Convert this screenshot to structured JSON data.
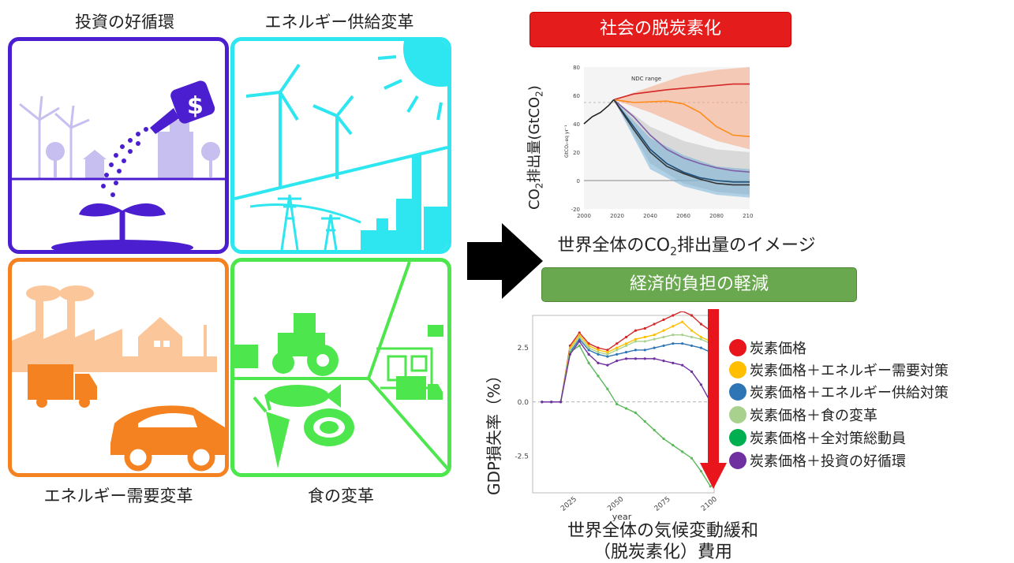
{
  "quadrants": {
    "investment": {
      "label": "投資の好循環",
      "color": "#4b1fd0"
    },
    "energy_supply": {
      "label": "エネルギー供給変革",
      "color": "#2ee6f0"
    },
    "energy_demand": {
      "label": "エネルギー需要変革",
      "color": "#f58220"
    },
    "food": {
      "label": "食の変革",
      "color": "#4de64d"
    }
  },
  "top_chart": {
    "banner": "社会の脱炭素化",
    "banner_color": "#e51c1c",
    "ylabel_prefix": "CO",
    "ylabel_sub": "2",
    "ylabel_suffix": "排出量(GtCO",
    "ylabel_sub2": "2",
    "ylabel_end": ")",
    "inner_ylabel": "GtCO₂-eq yr⁻¹",
    "ndc_label": "NDC range",
    "caption_pre": "世界全体のCO",
    "caption_sub": "2",
    "caption_post": "排出量のイメージ"
  },
  "bottom_chart": {
    "banner": "経済的負担の軽減",
    "banner_color": "#6aa84f",
    "ylabel": "GDP損失率（%）",
    "xlabel": "year",
    "caption_line1": "世界全体の気候変動緩和",
    "caption_line2": "（脱炭素化）費用",
    "arrow_color": "#e8161c"
  },
  "legend": [
    {
      "label": "炭素価格",
      "color": "#e8161c"
    },
    {
      "label": "炭素価格＋エネルギー需要対策",
      "color": "#ffbf00"
    },
    {
      "label": "炭素価格＋エネルギー供給対策",
      "color": "#2e75b6"
    },
    {
      "label": "炭素価格＋食の変革",
      "color": "#a9d18e"
    },
    {
      "label": "炭素価格＋全対策総動員",
      "color": "#00b050"
    },
    {
      "label": "炭素価格＋投資の好循環",
      "color": "#7030a0"
    }
  ],
  "chart_data": [
    {
      "type": "line",
      "title": "",
      "xlabel": "",
      "ylabel": "GtCO₂-eq yr⁻¹",
      "xlim": [
        2000,
        2100
      ],
      "ylim": [
        -20,
        80
      ],
      "xticks": [
        2000,
        2020,
        2040,
        2060,
        2080,
        2100
      ],
      "yticks": [
        -20,
        0,
        20,
        40,
        60,
        80
      ],
      "series": [
        {
          "name": "",
          "color": "#222222",
          "x": [
            2000,
            2005,
            2010,
            2015,
            2018
          ],
          "y": [
            40,
            45,
            48,
            53,
            57
          ]
        },
        {
          "name": "",
          "color": "#d62728",
          "x": [
            2018,
            2030,
            2050,
            2070,
            2090,
            2100
          ],
          "y": [
            57,
            61,
            64,
            66,
            68,
            68
          ]
        },
        {
          "name": "",
          "color": "#ff8c1a",
          "x": [
            2018,
            2030,
            2050,
            2060,
            2070,
            2080,
            2090,
            2100
          ],
          "y": [
            57,
            55,
            56,
            54,
            48,
            38,
            32,
            31
          ]
        },
        {
          "name": "",
          "color": "#7f5fa8",
          "x": [
            2018,
            2030,
            2040,
            2050,
            2060,
            2070,
            2080,
            2090,
            2100
          ],
          "y": [
            57,
            45,
            32,
            22,
            16,
            12,
            9,
            7,
            6
          ]
        },
        {
          "name": "",
          "color": "#1f4e79",
          "x": [
            2018,
            2030,
            2040,
            2050,
            2060,
            2070,
            2080,
            2090,
            2100
          ],
          "y": [
            57,
            38,
            22,
            12,
            6,
            2,
            0,
            -1,
            -1
          ]
        },
        {
          "name": "",
          "color": "#333333",
          "x": [
            2018,
            2030,
            2040,
            2050,
            2060,
            2070,
            2080,
            2090,
            2100
          ],
          "y": [
            57,
            36,
            20,
            10,
            5,
            1,
            -2,
            -3,
            -3
          ]
        }
      ]
    },
    {
      "type": "line",
      "title": "",
      "xlabel": "year",
      "ylabel": "GDP損失率（%）",
      "xlim": [
        2005,
        2102
      ],
      "ylim": [
        -4.2,
        4.0
      ],
      "xticks": [
        2025,
        2050,
        2075,
        2100
      ],
      "yticks": [
        -2.5,
        0.0,
        2.5
      ],
      "categories": [
        2010,
        2015,
        2020,
        2025,
        2030,
        2035,
        2040,
        2045,
        2050,
        2055,
        2060,
        2065,
        2070,
        2075,
        2080,
        2085,
        2090,
        2095,
        2100
      ],
      "series": [
        {
          "name": "炭素価格",
          "color": "#d62728",
          "values": [
            0,
            0,
            0,
            2.6,
            3.2,
            2.7,
            2.5,
            2.4,
            2.7,
            3.0,
            3.3,
            3.4,
            3.6,
            3.8,
            4.0,
            4.2,
            4.0,
            3.6,
            3.3
          ]
        },
        {
          "name": "炭素価格＋エネルギー需要対策",
          "color": "#ffbf00",
          "values": [
            0,
            0,
            0,
            2.5,
            3.1,
            2.6,
            2.4,
            2.3,
            2.5,
            2.7,
            2.9,
            3.0,
            3.1,
            3.3,
            3.5,
            3.7,
            3.3,
            3.0,
            2.8
          ]
        },
        {
          "name": "炭素価格＋エネルギー供給対策",
          "color": "#2e75b6",
          "values": [
            0,
            0,
            0,
            2.3,
            2.9,
            2.4,
            2.2,
            2.1,
            2.2,
            2.3,
            2.4,
            2.4,
            2.5,
            2.6,
            2.7,
            2.7,
            2.6,
            2.5,
            2.3
          ]
        },
        {
          "name": "炭素価格＋食の変革",
          "color": "#a9d18e",
          "values": [
            0,
            0,
            0,
            2.4,
            3.0,
            2.5,
            2.3,
            2.2,
            2.4,
            2.6,
            2.8,
            2.8,
            2.9,
            3.0,
            3.1,
            3.1,
            3.0,
            2.9,
            2.7
          ]
        },
        {
          "name": "炭素価格＋全対策総動員",
          "color": "#5cb85c",
          "values": [
            0,
            0,
            0,
            2.3,
            2.6,
            1.8,
            1.2,
            0.6,
            -0.1,
            -0.3,
            -0.5,
            -0.9,
            -1.3,
            -1.7,
            -2.0,
            -2.3,
            -2.6,
            -3.2,
            -3.9
          ]
        },
        {
          "name": "炭素価格＋投資の好循環",
          "color": "#7030a0",
          "values": [
            0,
            0,
            0,
            2.2,
            2.8,
            2.2,
            1.8,
            1.7,
            1.9,
            2.0,
            2.0,
            2.0,
            2.0,
            1.9,
            1.8,
            1.7,
            1.4,
            0.8,
            0.0
          ]
        }
      ]
    }
  ]
}
